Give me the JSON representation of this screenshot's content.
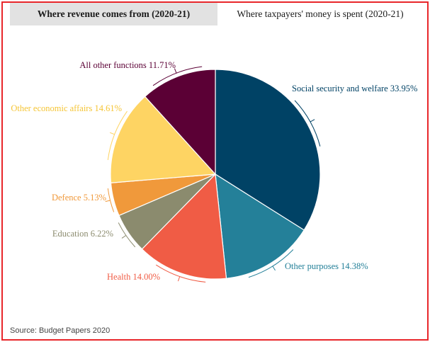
{
  "tabs": [
    {
      "label": "Where revenue comes from (2020-21)",
      "active": false
    },
    {
      "label": "Where taxpayers' money is spent (2020-21)",
      "active": true
    }
  ],
  "chart_data": {
    "type": "pie",
    "slices": [
      {
        "label": "Social security and welfare",
        "value": 33.95,
        "display": "33.95%",
        "color": "#004265"
      },
      {
        "label": "Other purposes",
        "value": 14.38,
        "display": "14.38%",
        "color": "#248099"
      },
      {
        "label": "Health",
        "value": 14.0,
        "display": "14.00%",
        "color": "#f05c45"
      },
      {
        "label": "Education",
        "value": 6.22,
        "display": "6.22%",
        "color": "#8b8b6e"
      },
      {
        "label": "Defence",
        "value": 5.13,
        "display": "5.13%",
        "color": "#f0993b"
      },
      {
        "label": "Other economic affairs",
        "value": 14.61,
        "display": "14.61%",
        "color": "#fed463"
      },
      {
        "label": "All other functions",
        "value": 11.71,
        "display": "11.71%",
        "color": "#5b0035"
      }
    ]
  },
  "source": "Source: Budget Papers 2020"
}
